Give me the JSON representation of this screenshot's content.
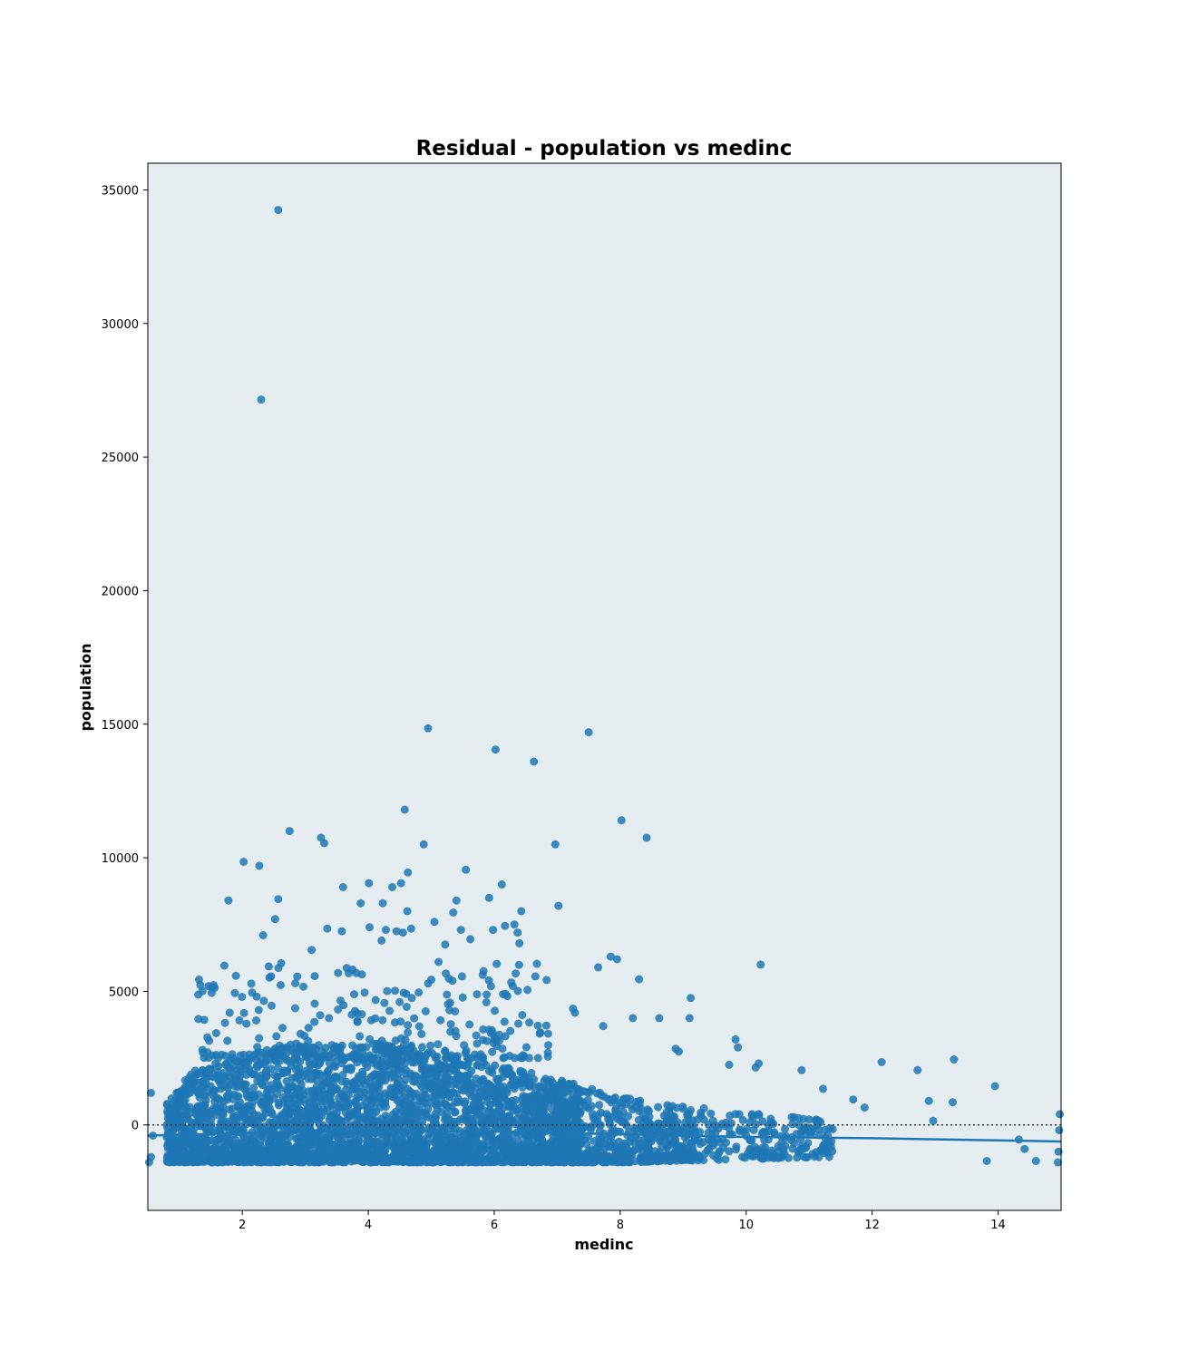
{
  "chart_data": {
    "type": "scatter",
    "title": "Residual - population vs medinc",
    "xlabel": "medinc",
    "ylabel": "population",
    "xlim": [
      0.5,
      15.0
    ],
    "ylim": [
      -3200,
      36000
    ],
    "xticks": [
      2,
      4,
      6,
      8,
      10,
      12,
      14
    ],
    "yticks": [
      0,
      5000,
      10000,
      15000,
      20000,
      25000,
      30000,
      35000
    ],
    "grid": false,
    "legend": "none",
    "reference_line_y": 0,
    "series": [
      {
        "kind": "residual_points",
        "note_density": "dense band between -1400 and 3000 for medinc 0.5 to 8",
        "points": [
          [
            2.57,
            34250
          ],
          [
            2.3,
            27150
          ],
          [
            4.95,
            14850
          ],
          [
            7.5,
            14700
          ],
          [
            6.02,
            14050
          ],
          [
            6.63,
            13600
          ],
          [
            4.58,
            11800
          ],
          [
            8.02,
            11400
          ],
          [
            2.75,
            11000
          ],
          [
            3.25,
            10750
          ],
          [
            8.42,
            10750
          ],
          [
            3.3,
            10550
          ],
          [
            4.88,
            10500
          ],
          [
            6.97,
            10500
          ],
          [
            2.02,
            9850
          ],
          [
            2.27,
            9700
          ],
          [
            5.55,
            9550
          ],
          [
            4.63,
            9450
          ],
          [
            4.01,
            9050
          ],
          [
            6.12,
            9000
          ],
          [
            4.52,
            9050
          ],
          [
            4.38,
            8900
          ],
          [
            3.6,
            8900
          ],
          [
            2.57,
            8450
          ],
          [
            1.78,
            8400
          ],
          [
            5.92,
            8500
          ],
          [
            5.4,
            8400
          ],
          [
            3.88,
            8300
          ],
          [
            4.23,
            8300
          ],
          [
            7.02,
            8200
          ],
          [
            4.62,
            8000
          ],
          [
            6.43,
            8000
          ],
          [
            5.35,
            7950
          ],
          [
            2.52,
            7700
          ],
          [
            5.05,
            7600
          ],
          [
            6.32,
            7500
          ],
          [
            4.02,
            7400
          ],
          [
            3.35,
            7350
          ],
          [
            4.68,
            7350
          ],
          [
            3.58,
            7250
          ],
          [
            2.33,
            7100
          ],
          [
            5.47,
            7300
          ],
          [
            6.37,
            7200
          ],
          [
            4.28,
            7300
          ],
          [
            5.98,
            7300
          ],
          [
            4.45,
            7250
          ],
          [
            4.55,
            7200
          ],
          [
            6.17,
            7450
          ],
          [
            4.21,
            6900
          ],
          [
            6.4,
            6800
          ],
          [
            5.62,
            6950
          ],
          [
            5.22,
            6750
          ],
          [
            3.1,
            6550
          ],
          [
            7.65,
            5900
          ],
          [
            7.85,
            6300
          ],
          [
            10.23,
            6000
          ],
          [
            7.95,
            6200
          ],
          [
            8.3,
            5450
          ],
          [
            9.12,
            4750
          ],
          [
            9.1,
            4000
          ],
          [
            8.62,
            4000
          ],
          [
            8.2,
            4000
          ],
          [
            7.73,
            3700
          ],
          [
            7.25,
            4350
          ],
          [
            7.28,
            4200
          ],
          [
            12.15,
            2350
          ],
          [
            13.3,
            2450
          ],
          [
            12.72,
            2050
          ],
          [
            13.95,
            1450
          ],
          [
            11.22,
            1350
          ],
          [
            10.88,
            2050
          ],
          [
            10.15,
            2150
          ],
          [
            10.2,
            2300
          ],
          [
            9.83,
            3200
          ],
          [
            9.87,
            2900
          ],
          [
            8.88,
            2850
          ],
          [
            8.93,
            2750
          ],
          [
            9.73,
            2250
          ],
          [
            11.7,
            950
          ],
          [
            11.88,
            650
          ],
          [
            12.9,
            900
          ],
          [
            13.28,
            850
          ],
          [
            12.97,
            150
          ],
          [
            14.33,
            -550
          ],
          [
            13.82,
            -1350
          ],
          [
            14.42,
            -900
          ],
          [
            14.6,
            -1350
          ],
          [
            14.95,
            -1400
          ],
          [
            14.98,
            400
          ],
          [
            14.97,
            -200
          ],
          [
            14.96,
            -1000
          ],
          [
            0.55,
            1200
          ],
          [
            0.55,
            -1200
          ],
          [
            0.52,
            -1400
          ],
          [
            0.58,
            -400
          ]
        ]
      },
      {
        "kind": "lowess_line",
        "x": [
          0.5,
          2,
          4,
          6,
          8,
          10,
          12,
          14,
          15
        ],
        "y": [
          -400,
          -300,
          -200,
          -250,
          -350,
          -450,
          -500,
          -580,
          -620
        ]
      }
    ],
    "colors": {
      "point": "#1f77b4",
      "line": "#1f77b4",
      "plot_bg": "#e5edf1",
      "zero_line": "#333333"
    }
  }
}
